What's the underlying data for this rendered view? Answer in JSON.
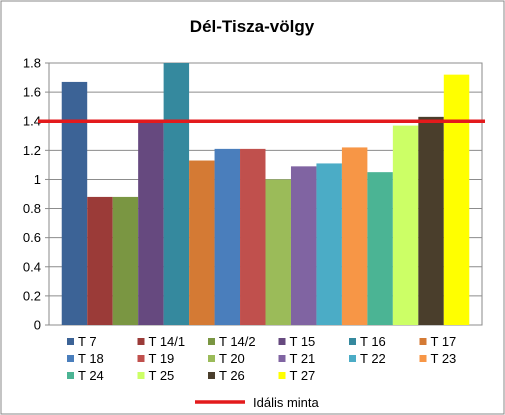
{
  "chart_data": {
    "type": "bar",
    "title": "Dél-Tisza-völgy",
    "xlabel": "",
    "ylabel": "",
    "ylim": [
      0,
      1.8
    ],
    "yticks": [
      0,
      0.2,
      0.4,
      0.6,
      0.8,
      1,
      1.2,
      1.4,
      1.6,
      1.8
    ],
    "ytick_labels": [
      "0",
      "0.2",
      "0.4",
      "0.6",
      "0.8",
      "1",
      "1.2",
      "1.4",
      "1.6",
      "1.8"
    ],
    "grid": true,
    "legend_position": "bottom",
    "categories": [
      "T 7",
      "T 14/1",
      "T 14/2",
      "T 15",
      "T 16",
      "T 17",
      "T 18",
      "T 19",
      "T 20",
      "T 21",
      "T 22",
      "T 23",
      "T 24",
      "T 25",
      "T 26",
      "T 27"
    ],
    "values": [
      1.67,
      0.88,
      0.88,
      1.4,
      1.8,
      1.13,
      1.21,
      1.21,
      1.0,
      1.09,
      1.11,
      1.22,
      1.05,
      1.37,
      1.43,
      1.72
    ],
    "colors": [
      "#3C6396",
      "#9B3B38",
      "#7A9642",
      "#66497F",
      "#35899E",
      "#D47A34",
      "#4A7EBC",
      "#C0504D",
      "#9BBB59",
      "#8064A2",
      "#4BACC6",
      "#F79646",
      "#4BB494",
      "#CCFF66",
      "#4A3E2C",
      "#FFFF00"
    ],
    "reference_line": {
      "name": "Idális minta",
      "value": 1.4,
      "color": "#E31A1C"
    }
  }
}
